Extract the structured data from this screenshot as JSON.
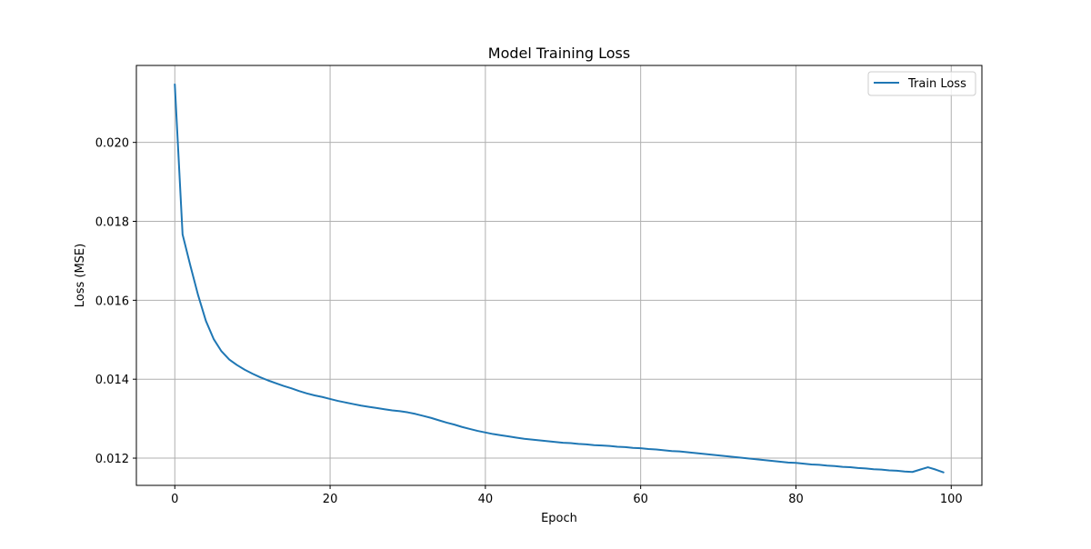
{
  "colors": {
    "series_line": "#1f77b4",
    "grid": "#b0b0b0",
    "axes": "#000000",
    "legend_border": "#cccccc",
    "background": "#ffffff"
  },
  "chart_data": {
    "type": "line",
    "title": "Model Training Loss",
    "xlabel": "Epoch",
    "ylabel": "Loss (MSE)",
    "xlim": [
      -4.95,
      103.95
    ],
    "ylim": [
      0.01131,
      0.02195
    ],
    "xticks": [
      0,
      20,
      40,
      60,
      80,
      100
    ],
    "xtick_labels": [
      "0",
      "20",
      "40",
      "60",
      "80",
      "100"
    ],
    "yticks": [
      0.012,
      0.014,
      0.016,
      0.018,
      0.02
    ],
    "ytick_labels": [
      "0.012",
      "0.014",
      "0.016",
      "0.018",
      "0.020"
    ],
    "grid": true,
    "legend_position": "top-right",
    "series": [
      {
        "name": "Train Loss",
        "x": [
          0,
          1,
          2,
          3,
          4,
          5,
          6,
          7,
          8,
          9,
          10,
          11,
          12,
          13,
          14,
          15,
          16,
          17,
          18,
          19,
          20,
          21,
          22,
          23,
          24,
          25,
          26,
          27,
          28,
          29,
          30,
          31,
          32,
          33,
          34,
          35,
          36,
          37,
          38,
          39,
          40,
          41,
          42,
          43,
          44,
          45,
          46,
          47,
          48,
          49,
          50,
          51,
          52,
          53,
          54,
          55,
          56,
          57,
          58,
          59,
          60,
          61,
          62,
          63,
          64,
          65,
          66,
          67,
          68,
          69,
          70,
          71,
          72,
          73,
          74,
          75,
          76,
          77,
          78,
          79,
          80,
          81,
          82,
          83,
          84,
          85,
          86,
          87,
          88,
          89,
          90,
          91,
          92,
          93,
          94,
          95,
          96,
          97,
          98,
          99
        ],
        "y": [
          0.02147,
          0.01767,
          0.01688,
          0.01613,
          0.01548,
          0.01502,
          0.01471,
          0.0145,
          0.01436,
          0.01424,
          0.01414,
          0.01405,
          0.01397,
          0.0139,
          0.01383,
          0.01377,
          0.0137,
          0.01364,
          0.01359,
          0.01355,
          0.0135,
          0.01345,
          0.01341,
          0.01337,
          0.01333,
          0.0133,
          0.01327,
          0.01324,
          0.01321,
          0.01319,
          0.01316,
          0.01312,
          0.01307,
          0.01302,
          0.01296,
          0.0129,
          0.01285,
          0.01279,
          0.01274,
          0.01269,
          0.01265,
          0.01261,
          0.01258,
          0.01255,
          0.01252,
          0.01249,
          0.01247,
          0.01245,
          0.01243,
          0.01241,
          0.01239,
          0.01238,
          0.01236,
          0.01235,
          0.01233,
          0.01232,
          0.01231,
          0.01229,
          0.01228,
          0.01226,
          0.01225,
          0.01223,
          0.01222,
          0.0122,
          0.01218,
          0.01217,
          0.01215,
          0.01213,
          0.01211,
          0.01209,
          0.01207,
          0.01205,
          0.01203,
          0.01201,
          0.01199,
          0.01197,
          0.01195,
          0.01193,
          0.01191,
          0.01189,
          0.01188,
          0.01186,
          0.01184,
          0.01183,
          0.01181,
          0.0118,
          0.01178,
          0.01177,
          0.01175,
          0.01174,
          0.01172,
          0.01171,
          0.01169,
          0.01168,
          0.01166,
          0.01165,
          0.01171,
          0.01177,
          0.01171,
          0.01164
        ]
      }
    ]
  }
}
